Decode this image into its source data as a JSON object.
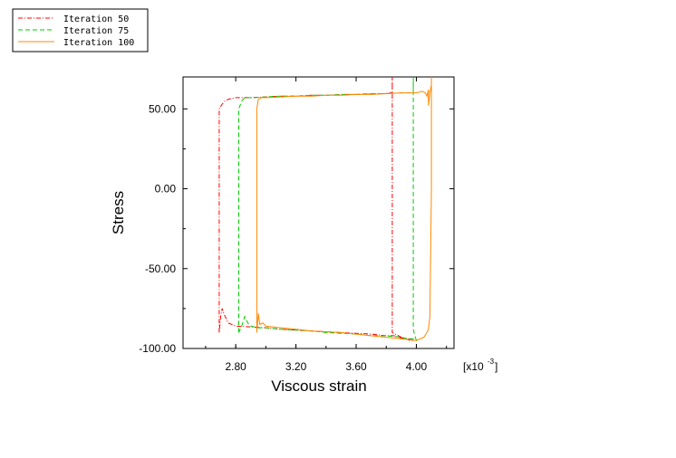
{
  "chart_data": {
    "type": "line",
    "title": "",
    "xlabel": "Viscous strain",
    "ylabel": "Stress",
    "x_multiplier": {
      "base": "[x10",
      "exponent": "-3",
      "close": "]"
    },
    "xlim": [
      2.45,
      4.25
    ],
    "ylim": [
      -100,
      70
    ],
    "x_ticks": [
      2.8,
      3.2,
      3.6,
      4.0
    ],
    "x_tick_labels": [
      "2.80",
      "3.20",
      "3.60",
      "4.00"
    ],
    "y_ticks": [
      -100,
      -50,
      0,
      50
    ],
    "y_tick_labels": [
      "-100.00",
      "-50.00",
      "0.00",
      "50.00"
    ],
    "grid": false,
    "legend_position": "top-left",
    "series": [
      {
        "name": "Iteration 50",
        "color": "#ff0000",
        "dash": "dashdot",
        "x": [
          2.69,
          2.69,
          2.69,
          2.71,
          2.73,
          2.75,
          2.8,
          2.9,
          3.0,
          3.1,
          3.2,
          3.3,
          3.4,
          3.5,
          3.6,
          3.7,
          3.78,
          3.82,
          3.84,
          3.84,
          3.84,
          3.84,
          3.9,
          3.96,
          3.98,
          3.97,
          3.92,
          3.85,
          3.8,
          3.7,
          3.6,
          3.5,
          3.4,
          3.3,
          3.2,
          3.1,
          3.0,
          2.9,
          2.8,
          2.75,
          2.72,
          2.71,
          2.7,
          2.69
        ],
        "y": [
          -90,
          0,
          50,
          53,
          55,
          56,
          57,
          57,
          57.5,
          58,
          58,
          58.5,
          58.5,
          59,
          59,
          59.5,
          59.5,
          60,
          60,
          70,
          0,
          -90,
          -93,
          -95,
          -95,
          -94,
          -94,
          -92,
          -92,
          -91,
          -90.5,
          -90,
          -89.5,
          -89,
          -88.5,
          -88,
          -87,
          -86.5,
          -86,
          -84,
          -78,
          -75,
          -80,
          -90
        ]
      },
      {
        "name": "Iteration 75",
        "color": "#00cc00",
        "dash": "dash",
        "x": [
          2.82,
          2.82,
          2.82,
          2.84,
          2.86,
          2.9,
          3.0,
          3.1,
          3.2,
          3.3,
          3.4,
          3.5,
          3.6,
          3.7,
          3.8,
          3.9,
          3.95,
          3.97,
          3.98,
          3.98,
          3.98,
          3.98,
          3.99,
          4.0,
          3.98,
          3.95,
          3.9,
          3.8,
          3.7,
          3.6,
          3.5,
          3.4,
          3.3,
          3.2,
          3.1,
          3.0,
          2.95,
          2.9,
          2.88,
          2.86,
          2.84,
          2.82
        ],
        "y": [
          -90,
          0,
          50,
          55,
          57,
          57,
          57.5,
          58,
          58,
          58.5,
          58.5,
          59,
          59,
          59.5,
          59.5,
          60,
          60,
          60,
          60,
          70,
          0,
          -88,
          -92,
          -95,
          -94,
          -94,
          -93,
          -92,
          -92,
          -91,
          -90.5,
          -90,
          -89,
          -88.5,
          -88,
          -87,
          -87,
          -86,
          -84,
          -80,
          -86,
          -90
        ]
      },
      {
        "name": "Iteration 100",
        "color": "#ff8800",
        "dash": "solid",
        "x": [
          2.94,
          2.94,
          2.95,
          2.97,
          3.0,
          3.1,
          3.2,
          3.3,
          3.4,
          3.5,
          3.6,
          3.7,
          3.8,
          3.9,
          4.0,
          4.04,
          4.06,
          4.07,
          4.08,
          4.08,
          4.09,
          4.1,
          4.1,
          4.1,
          4.09,
          4.08,
          4.07,
          4.05,
          4.0,
          3.9,
          3.8,
          3.7,
          3.6,
          3.5,
          3.4,
          3.3,
          3.2,
          3.1,
          3.05,
          3.0,
          2.98,
          2.96,
          2.95,
          2.94
        ],
        "y": [
          -90,
          50,
          56,
          57,
          57,
          57.5,
          58,
          58,
          58.5,
          58.5,
          59,
          59,
          59.5,
          60,
          60,
          61,
          60,
          58,
          62,
          52,
          60,
          65,
          70,
          0,
          -80,
          -88,
          -90,
          -93,
          -95,
          -94,
          -93,
          -92,
          -91,
          -90,
          -89.5,
          -89,
          -88,
          -87,
          -86.5,
          -86,
          -84,
          -85,
          -78,
          -90
        ]
      }
    ]
  }
}
